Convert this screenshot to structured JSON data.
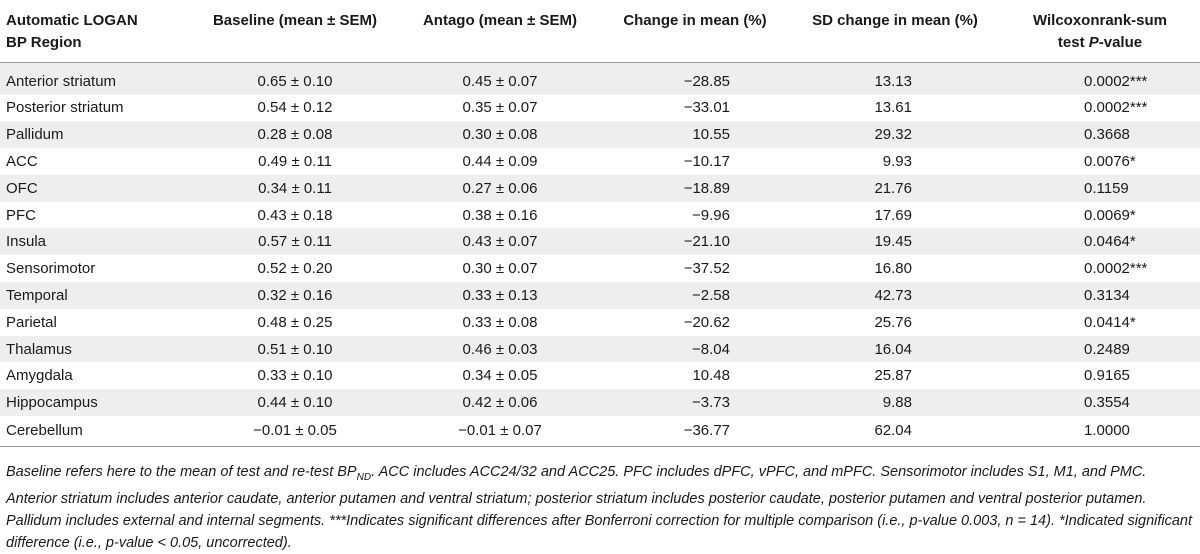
{
  "table": {
    "headers": {
      "region_line1": "Automatic LOGAN",
      "region_line2": "BP Region",
      "baseline": "Baseline (mean ± SEM)",
      "antago": "Antago (mean ± SEM)",
      "change": "Change in mean (%)",
      "sd_change": "SD change in mean (%)",
      "wilcoxon_line1": "Wilcoxonrank-sum",
      "wilcoxon_line2_prefix": "test ",
      "wilcoxon_line2_p": "P",
      "wilcoxon_line2_suffix": "-value"
    },
    "rows": [
      {
        "region": "Anterior striatum",
        "baseline": "0.65 ± 0.10",
        "antago": "0.45 ± 0.07",
        "change": "−28.85",
        "sd": "13.13",
        "p": "0.0002***"
      },
      {
        "region": "Posterior striatum",
        "baseline": "0.54 ± 0.12",
        "antago": "0.35 ± 0.07",
        "change": "−33.01",
        "sd": "13.61",
        "p": "0.0002***"
      },
      {
        "region": "Pallidum",
        "baseline": "0.28 ± 0.08",
        "antago": "0.30 ± 0.08",
        "change": "10.55",
        "sd": "29.32",
        "p": "0.3668"
      },
      {
        "region": "ACC",
        "baseline": "0.49 ± 0.11",
        "antago": "0.44 ± 0.09",
        "change": "−10.17",
        "sd": "9.93",
        "p": "0.0076*"
      },
      {
        "region": "OFC",
        "baseline": "0.34 ± 0.11",
        "antago": "0.27 ± 0.06",
        "change": "−18.89",
        "sd": "21.76",
        "p": "0.1159"
      },
      {
        "region": "PFC",
        "baseline": "0.43 ± 0.18",
        "antago": "0.38 ± 0.16",
        "change": "−9.96",
        "sd": "17.69",
        "p": "0.0069*"
      },
      {
        "region": "Insula",
        "baseline": "0.57 ± 0.11",
        "antago": "0.43 ± 0.07",
        "change": "−21.10",
        "sd": "19.45",
        "p": "0.0464*"
      },
      {
        "region": "Sensorimotor",
        "baseline": "0.52 ± 0.20",
        "antago": "0.30 ± 0.07",
        "change": "−37.52",
        "sd": "16.80",
        "p": "0.0002***"
      },
      {
        "region": "Temporal",
        "baseline": "0.32 ± 0.16",
        "antago": "0.33 ± 0.13",
        "change": "−2.58",
        "sd": "42.73",
        "p": "0.3134"
      },
      {
        "region": "Parietal",
        "baseline": "0.48 ± 0.25",
        "antago": "0.33 ± 0.08",
        "change": "−20.62",
        "sd": "25.76",
        "p": "0.0414*"
      },
      {
        "region": "Thalamus",
        "baseline": "0.51 ± 0.10",
        "antago": "0.46 ± 0.03",
        "change": "−8.04",
        "sd": "16.04",
        "p": "0.2489"
      },
      {
        "region": "Amygdala",
        "baseline": "0.33 ± 0.10",
        "antago": "0.34 ± 0.05",
        "change": "10.48",
        "sd": "25.87",
        "p": "0.9165"
      },
      {
        "region": "Hippocampus",
        "baseline": "0.44 ± 0.10",
        "antago": "0.42 ± 0.06",
        "change": "−3.73",
        "sd": "9.88",
        "p": "0.3554"
      },
      {
        "region": "Cerebellum",
        "baseline": "−0.01 ± 0.05",
        "antago": "−0.01 ± 0.07",
        "change": "−36.77",
        "sd": "62.04",
        "p": "1.0000"
      }
    ]
  },
  "footnote": {
    "part1": "Baseline refers here to the mean of test and re-test BP",
    "subscript": "ND",
    "part2": ". ACC includes ACC24/32 and ACC25. PFC includes dPFC, vPFC, and mPFC. Sensorimotor includes S1, M1, and PMC. Anterior striatum includes anterior caudate, anterior putamen and ventral striatum; posterior striatum includes posterior caudate, posterior putamen and ventral posterior putamen. Pallidum includes external and internal segments. ***Indicates significant differences after Bonferroni correction for multiple comparison (i.e., p-value 0.003, n = 14). *Indicated significant difference (i.e., p-value < 0.05, uncorrected)."
  }
}
